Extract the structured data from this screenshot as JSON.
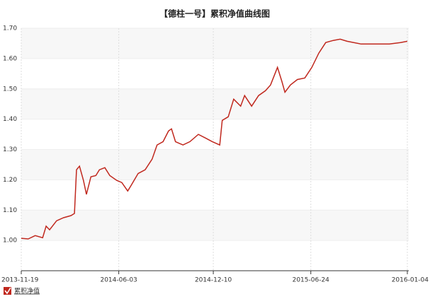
{
  "chart_data": {
    "type": "line",
    "title": "【德柱一号】累积净值曲线图",
    "x": [
      "2013-11-19",
      "2013-12-03",
      "2013-12-17",
      "2014-01-01",
      "2014-01-08",
      "2014-01-15",
      "2014-01-29",
      "2014-02-12",
      "2014-02-27",
      "2014-03-06",
      "2014-03-10",
      "2014-03-16",
      "2014-03-24",
      "2014-03-30",
      "2014-04-08",
      "2014-04-18",
      "2014-04-25",
      "2014-05-06",
      "2014-05-16",
      "2014-05-30",
      "2014-06-09",
      "2014-06-21",
      "2014-06-28",
      "2014-07-12",
      "2014-07-26",
      "2014-08-09",
      "2014-08-19",
      "2014-08-31",
      "2014-09-11",
      "2014-09-17",
      "2014-09-25",
      "2014-10-10",
      "2014-10-24",
      "2014-11-10",
      "2014-11-24",
      "2014-12-08",
      "2014-12-23",
      "2014-12-28",
      "2015-01-09",
      "2015-01-20",
      "2015-02-03",
      "2015-02-11",
      "2015-02-25",
      "2015-03-11",
      "2015-03-25",
      "2015-04-04",
      "2015-04-18",
      "2015-04-27",
      "2015-05-03",
      "2015-05-14",
      "2015-05-28",
      "2015-06-12",
      "2015-06-26",
      "2015-07-10",
      "2015-07-24",
      "2015-08-08",
      "2015-08-22",
      "2015-09-05",
      "2015-10-03",
      "2015-11-01",
      "2015-11-29",
      "2015-12-21",
      "2016-01-04"
    ],
    "series": [
      {
        "name": "累积净值",
        "color": "#c0281e",
        "values": [
          1.007,
          1.005,
          1.016,
          1.009,
          1.047,
          1.035,
          1.065,
          1.075,
          1.082,
          1.089,
          1.233,
          1.245,
          1.198,
          1.152,
          1.21,
          1.214,
          1.233,
          1.24,
          1.214,
          1.198,
          1.191,
          1.163,
          1.182,
          1.221,
          1.233,
          1.268,
          1.315,
          1.326,
          1.361,
          1.368,
          1.326,
          1.315,
          1.326,
          1.35,
          1.338,
          1.326,
          1.315,
          1.396,
          1.408,
          1.466,
          1.443,
          1.478,
          1.443,
          1.478,
          1.494,
          1.513,
          1.571,
          1.524,
          1.489,
          1.513,
          1.531,
          1.536,
          1.571,
          1.618,
          1.653,
          1.66,
          1.664,
          1.657,
          1.648,
          1.648,
          1.648,
          1.653,
          1.657
        ]
      }
    ],
    "xlim": [
      "2013-11-19",
      "2016-01-04"
    ],
    "xticks": [
      "2013-11-19",
      "2014-06-03",
      "2014-12-10",
      "2015-06-24",
      "2016-01-04"
    ],
    "ylim": [
      0.9,
      1.7
    ],
    "yticks": [
      {
        "value": 1,
        "label": "1.00"
      },
      {
        "value": 1.1,
        "label": "1.10"
      },
      {
        "value": 1.2,
        "label": "1.20"
      },
      {
        "value": 1.3,
        "label": "1.30"
      },
      {
        "value": 1.4,
        "label": "1.40"
      },
      {
        "value": 1.5,
        "label": "1.50"
      },
      {
        "value": 1.6,
        "label": "1.60"
      },
      {
        "value": 1.7,
        "label": "1.70"
      }
    ],
    "grid": true
  }
}
